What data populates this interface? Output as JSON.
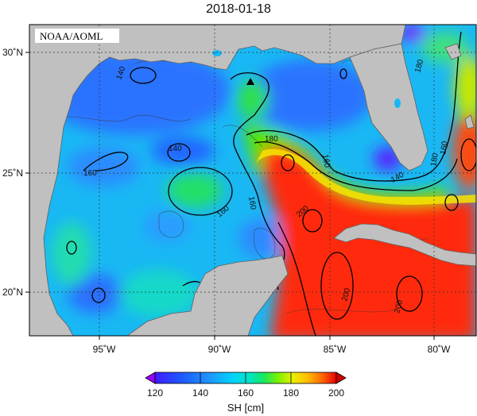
{
  "title": "2018-01-18",
  "credit": "NOAA/AOML",
  "map": {
    "lon_labels": [
      "95˚W",
      "90˚W",
      "85˚W",
      "80˚W"
    ],
    "lat_labels": [
      "30˚N",
      "25˚N",
      "20˚N"
    ],
    "gridlines": true,
    "contour_labels": [
      "140",
      "140",
      "160",
      "160",
      "160",
      "180",
      "160",
      "180",
      "180",
      "200",
      "200",
      "200",
      "160",
      "140"
    ],
    "float_marker": "triangle",
    "colors": {
      "land": "#c0c0c0",
      "ocean_low": "#1e5aff",
      "ocean_mid": "#00dcd6",
      "ocean_high": "#ff2a10"
    }
  },
  "colorbar": {
    "label": "SH [cm]",
    "ticks": [
      "120",
      "140",
      "160",
      "180",
      "200"
    ],
    "range": [
      120,
      200
    ],
    "extend": "both",
    "colors": [
      "#9900ff",
      "#3e1bff",
      "#1e5aff",
      "#1f96ff",
      "#00d0ff",
      "#00e6c8",
      "#18e860",
      "#7cf000",
      "#e8f000",
      "#ffbe00",
      "#ff7a00",
      "#ff3a10",
      "#e80000"
    ]
  }
}
